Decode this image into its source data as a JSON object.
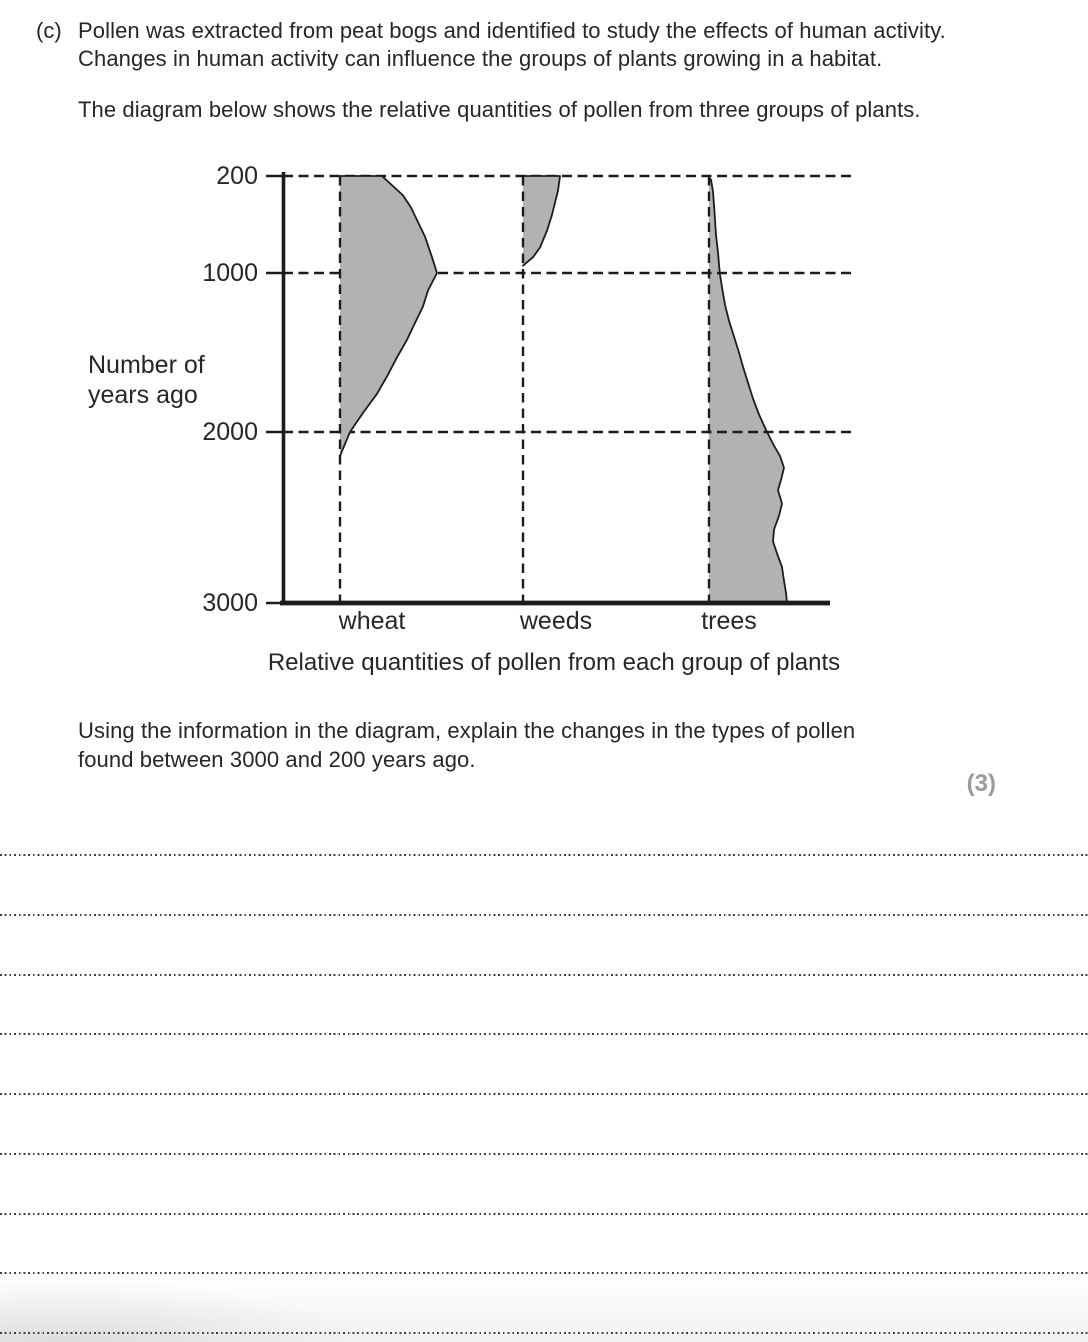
{
  "question": {
    "label": "(c)",
    "intro_lines": [
      "Pollen was extracted from peat bogs and identified to study the effects of human activity.",
      "Changes in human activity can influence the groups of plants growing in a habitat."
    ],
    "diagram_intro": "The diagram below shows the relative quantities of pollen from three groups of plants.",
    "task_lines": [
      "Using the information in the diagram, explain the changes in the types of pollen",
      "found between 3000 and 200 years ago."
    ],
    "marks": "(3)"
  },
  "chart_data": {
    "type": "area",
    "variant": "pollen-profile-diagram",
    "title": "Relative quantities of pollen from each group of plants",
    "ylabel_lines": [
      "Number of",
      "years ago"
    ],
    "y_ticks": [
      200,
      1000,
      2000,
      3000
    ],
    "y_range": [
      200,
      3000
    ],
    "y_axis_direction": "years-ago increases downward",
    "value_units": "relative quantity of pollen (arbitrary units, shown as horizontal width)",
    "grid": "dashed horizontal gridlines at ticks, dashed vertical baseline per group",
    "series": [
      {
        "name": "wheat",
        "points": [
          [
            200,
            42
          ],
          [
            360,
            63
          ],
          [
            460,
            71
          ],
          [
            580,
            78
          ],
          [
            700,
            85
          ],
          [
            870,
            92
          ],
          [
            1000,
            97
          ],
          [
            1110,
            88
          ],
          [
            1210,
            83
          ],
          [
            1340,
            73
          ],
          [
            1420,
            67
          ],
          [
            1530,
            57
          ],
          [
            1650,
            47
          ],
          [
            1760,
            37
          ],
          [
            1880,
            23
          ],
          [
            2000,
            10
          ],
          [
            2140,
            0
          ]
        ]
      },
      {
        "name": "weeds",
        "points": [
          [
            200,
            37
          ],
          [
            320,
            35
          ],
          [
            420,
            32
          ],
          [
            520,
            29
          ],
          [
            650,
            24
          ],
          [
            790,
            17
          ],
          [
            870,
            10
          ],
          [
            940,
            0
          ]
        ]
      },
      {
        "name": "trees",
        "points": [
          [
            215,
            0
          ],
          [
            230,
            2
          ],
          [
            330,
            4
          ],
          [
            440,
            5
          ],
          [
            560,
            6
          ],
          [
            690,
            7
          ],
          [
            830,
            9
          ],
          [
            930,
            10
          ],
          [
            1010,
            11
          ],
          [
            1090,
            13
          ],
          [
            1200,
            16
          ],
          [
            1300,
            20
          ],
          [
            1400,
            25
          ],
          [
            1500,
            30
          ],
          [
            1590,
            34
          ],
          [
            1690,
            39
          ],
          [
            1790,
            44
          ],
          [
            1890,
            50
          ],
          [
            2000,
            58
          ],
          [
            2080,
            65
          ],
          [
            2140,
            71
          ],
          [
            2210,
            75
          ],
          [
            2280,
            72
          ],
          [
            2340,
            69
          ],
          [
            2420,
            73
          ],
          [
            2490,
            70
          ],
          [
            2570,
            65
          ],
          [
            2640,
            64
          ],
          [
            2710,
            68
          ],
          [
            2790,
            73
          ],
          [
            2870,
            75
          ],
          [
            2940,
            77
          ],
          [
            3000,
            78
          ]
        ]
      }
    ]
  },
  "answer_area": {
    "line_count": 9
  }
}
